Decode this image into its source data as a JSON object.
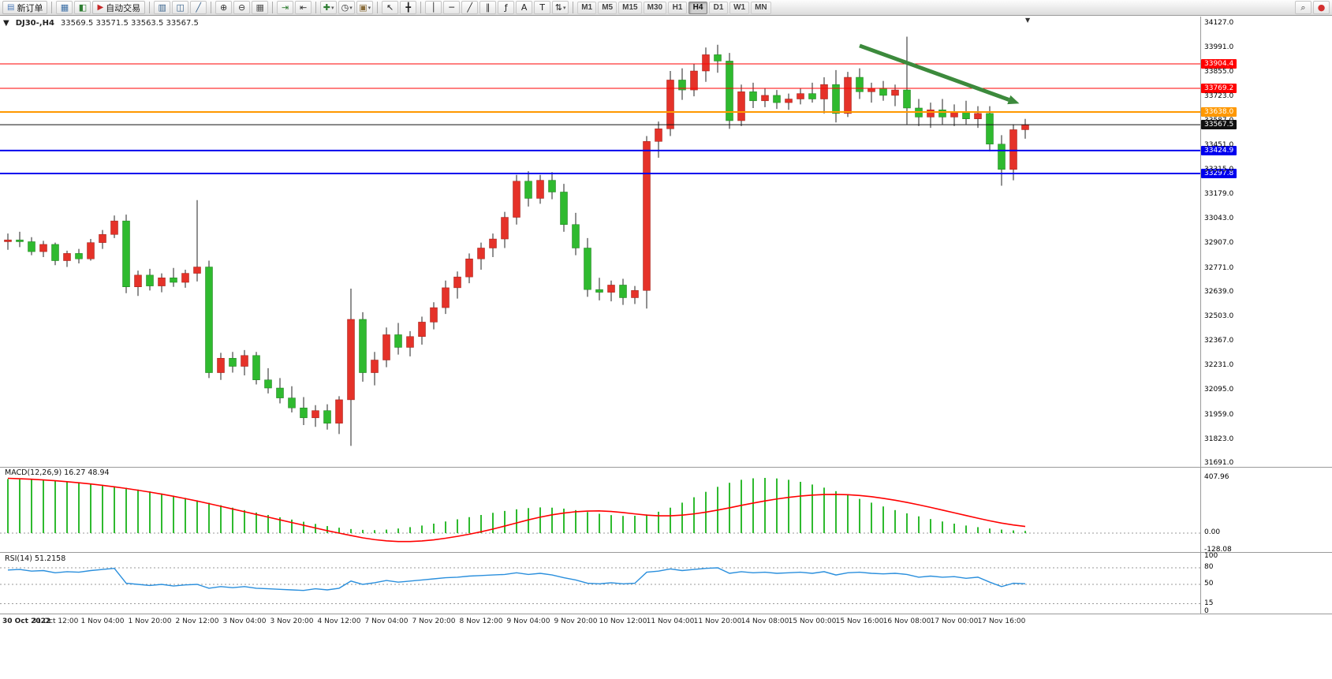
{
  "toolbar": {
    "dropdown_glyph": "▾",
    "items": [
      {
        "type": "button",
        "name": "new-order-button",
        "glyph": "▤",
        "glyph_color": "#4a79b8",
        "label": "新订单"
      },
      {
        "type": "sep"
      },
      {
        "type": "icon",
        "name": "charts-window-icon",
        "glyph": "▦",
        "color": "#3a6ea5"
      },
      {
        "type": "icon",
        "name": "market-watch-icon",
        "glyph": "◧",
        "color": "#2e7d32"
      },
      {
        "type": "button",
        "name": "auto-trading-button",
        "glyph": "▶",
        "glyph_color": "#c62828",
        "label": "自动交易"
      },
      {
        "type": "sep"
      },
      {
        "type": "icon",
        "name": "bar-chart-icon",
        "glyph": "▥",
        "color": "#35608a"
      },
      {
        "type": "icon",
        "name": "candlestick-chart-icon",
        "glyph": "◫",
        "color": "#35608a"
      },
      {
        "type": "icon",
        "name": "line-chart-icon",
        "glyph": "╱",
        "color": "#35608a"
      },
      {
        "type": "sep"
      },
      {
        "type": "icon",
        "name": "zoom-in-icon",
        "glyph": "⊕",
        "color": "#333333"
      },
      {
        "type": "icon",
        "name": "zoom-out-icon",
        "glyph": "⊖",
        "color": "#333333"
      },
      {
        "type": "icon",
        "name": "tile-windows-icon",
        "glyph": "▦",
        "color": "#555555"
      },
      {
        "type": "sep"
      },
      {
        "type": "icon",
        "name": "auto-scroll-icon",
        "glyph": "⇥",
        "color": "#2e7d32"
      },
      {
        "type": "icon",
        "name": "chart-shift-icon",
        "glyph": "⇤",
        "color": "#333333"
      },
      {
        "type": "sep"
      },
      {
        "type": "icon",
        "name": "indicators-icon",
        "glyph": "✚",
        "color": "#2e7d32",
        "dropdown": true
      },
      {
        "type": "icon",
        "name": "periods-icon",
        "glyph": "◷",
        "color": "#333333",
        "dropdown": true
      },
      {
        "type": "icon",
        "name": "templates-icon",
        "glyph": "▣",
        "color": "#8a6d3b",
        "dropdown": true
      },
      {
        "type": "sep"
      },
      {
        "type": "icon",
        "name": "cursor-icon",
        "glyph": "↖",
        "color": "#222222"
      },
      {
        "type": "icon",
        "name": "crosshair-icon",
        "glyph": "╋",
        "color": "#222222"
      },
      {
        "type": "sep"
      },
      {
        "type": "icon",
        "name": "vertical-line-icon",
        "glyph": "│",
        "color": "#222222"
      },
      {
        "type": "icon",
        "name": "horizontal-line-icon",
        "glyph": "─",
        "color": "#222222"
      },
      {
        "type": "icon",
        "name": "trendline-icon",
        "glyph": "╱",
        "color": "#222222"
      },
      {
        "type": "icon",
        "name": "equidistant-channel-icon",
        "glyph": "∥",
        "color": "#222222"
      },
      {
        "type": "icon",
        "name": "fibonacci-icon",
        "glyph": "ƒ",
        "color": "#222222"
      },
      {
        "type": "icon",
        "name": "text-icon",
        "glyph": "A",
        "color": "#222222"
      },
      {
        "type": "icon",
        "name": "text-label-icon",
        "glyph": "T",
        "color": "#222222"
      },
      {
        "type": "icon",
        "name": "arrows-icon",
        "glyph": "⇅",
        "color": "#222222",
        "dropdown": true
      },
      {
        "type": "sep"
      },
      {
        "type": "tf",
        "name": "timeframe-m1",
        "label": "M1"
      },
      {
        "type": "tf",
        "name": "timeframe-m5",
        "label": "M5"
      },
      {
        "type": "tf",
        "name": "timeframe-m15",
        "label": "M15"
      },
      {
        "type": "tf",
        "name": "timeframe-m30",
        "label": "M30"
      },
      {
        "type": "tf",
        "name": "timeframe-h1",
        "label": "H1"
      },
      {
        "type": "tf",
        "name": "timeframe-h4",
        "label": "H4",
        "active": true
      },
      {
        "type": "tf",
        "name": "timeframe-d1",
        "label": "D1"
      },
      {
        "type": "tf",
        "name": "timeframe-w1",
        "label": "W1"
      },
      {
        "type": "tf",
        "name": "timeframe-mn",
        "label": "MN"
      }
    ],
    "right_items": [
      {
        "type": "icon",
        "name": "search-icon",
        "glyph": "⌕",
        "color": "#333333"
      },
      {
        "type": "icon",
        "name": "account-icon",
        "glyph": "●",
        "color": "#d32f2f"
      }
    ]
  },
  "chart_header": {
    "collapse_glyph": "▼",
    "symbol_period": "DJ30-,H4",
    "ohlc": "33569.5 33571.5 33563.5 33567.5",
    "shift_marker_glyph": "▼"
  },
  "indicators": {
    "macd": {
      "label": "MACD(12,26,9) 16.27 48.94",
      "params": [
        12,
        26,
        9
      ],
      "current_main": 16.27,
      "current_signal": 48.94,
      "axis": [
        407.96,
        0,
        -128.08
      ]
    },
    "rsi": {
      "label": "RSI(14) 51.2158",
      "period": 14,
      "current": 51.2158,
      "axis": [
        100,
        80,
        50,
        15,
        0
      ],
      "levels": [
        80,
        50,
        15
      ]
    }
  },
  "chart_data": {
    "type": "candlestick",
    "symbol": "DJ30-",
    "timeframe": "H4",
    "title": "DJ30-,H4",
    "ylim": [
      31691,
      34127
    ],
    "grid": false,
    "y_ticks": [
      34127,
      33991,
      33855,
      33723,
      33587,
      33451,
      33315,
      33179,
      33043,
      32907,
      32771,
      32639,
      32503,
      32367,
      32231,
      32095,
      31959,
      31823,
      31691
    ],
    "x_labels": [
      "30 Oct 2022",
      "31 Oct 12:00",
      "1 Nov 04:00",
      "1 Nov 20:00",
      "2 Nov 12:00",
      "3 Nov 04:00",
      "3 Nov 20:00",
      "4 Nov 12:00",
      "7 Nov 04:00",
      "7 Nov 20:00",
      "8 Nov 12:00",
      "9 Nov 04:00",
      "9 Nov 20:00",
      "10 Nov 12:00",
      "11 Nov 04:00",
      "11 Nov 20:00",
      "14 Nov 08:00",
      "15 Nov 00:00",
      "15 Nov 16:00",
      "16 Nov 08:00",
      "17 Nov 00:00",
      "17 Nov 16:00"
    ],
    "bars_per_label": 4,
    "candles": [
      [
        32920,
        32965,
        32875,
        32930
      ],
      [
        32930,
        32975,
        32890,
        32920
      ],
      [
        32920,
        32945,
        32845,
        32865
      ],
      [
        32865,
        32925,
        32835,
        32905
      ],
      [
        32905,
        32915,
        32790,
        32815
      ],
      [
        32815,
        32870,
        32780,
        32855
      ],
      [
        32855,
        32880,
        32800,
        32825
      ],
      [
        32825,
        32935,
        32815,
        32915
      ],
      [
        32915,
        32985,
        32880,
        32960
      ],
      [
        32960,
        33065,
        32940,
        33035
      ],
      [
        33035,
        33070,
        32635,
        32670
      ],
      [
        32670,
        32760,
        32620,
        32735
      ],
      [
        32735,
        32770,
        32650,
        32675
      ],
      [
        32675,
        32745,
        32640,
        32720
      ],
      [
        32720,
        32775,
        32670,
        32695
      ],
      [
        32695,
        32765,
        32665,
        32745
      ],
      [
        32745,
        33150,
        32700,
        32780
      ],
      [
        32780,
        32815,
        32165,
        32195
      ],
      [
        32195,
        32305,
        32155,
        32275
      ],
      [
        32275,
        32310,
        32195,
        32230
      ],
      [
        32230,
        32320,
        32180,
        32290
      ],
      [
        32290,
        32310,
        32130,
        32155
      ],
      [
        32155,
        32220,
        32080,
        32110
      ],
      [
        32110,
        32165,
        32025,
        32055
      ],
      [
        32055,
        32120,
        31975,
        32000
      ],
      [
        32000,
        32060,
        31905,
        31945
      ],
      [
        31945,
        32015,
        31895,
        31985
      ],
      [
        31985,
        32020,
        31880,
        31915
      ],
      [
        31915,
        32065,
        31855,
        32045
      ],
      [
        32045,
        32660,
        31790,
        32490
      ],
      [
        32490,
        32530,
        32145,
        32195
      ],
      [
        32195,
        32310,
        32125,
        32265
      ],
      [
        32265,
        32445,
        32225,
        32405
      ],
      [
        32405,
        32470,
        32295,
        32335
      ],
      [
        32335,
        32425,
        32285,
        32395
      ],
      [
        32395,
        32505,
        32350,
        32475
      ],
      [
        32475,
        32585,
        32435,
        32555
      ],
      [
        32555,
        32705,
        32520,
        32665
      ],
      [
        32665,
        32755,
        32605,
        32725
      ],
      [
        32725,
        32855,
        32690,
        32825
      ],
      [
        32825,
        32915,
        32765,
        32885
      ],
      [
        32885,
        32965,
        32835,
        32935
      ],
      [
        32935,
        33085,
        32885,
        33055
      ],
      [
        33055,
        33290,
        33015,
        33255
      ],
      [
        33255,
        33310,
        33115,
        33160
      ],
      [
        33160,
        33290,
        33130,
        33260
      ],
      [
        33260,
        33305,
        33155,
        33195
      ],
      [
        33195,
        33240,
        32975,
        33015
      ],
      [
        33015,
        33080,
        32845,
        32885
      ],
      [
        32885,
        32940,
        32615,
        32655
      ],
      [
        32655,
        32720,
        32595,
        32640
      ],
      [
        32640,
        32705,
        32590,
        32680
      ],
      [
        32680,
        32715,
        32570,
        32610
      ],
      [
        32610,
        32675,
        32575,
        32650
      ],
      [
        32650,
        33505,
        32550,
        33475
      ],
      [
        33475,
        33585,
        33385,
        33545
      ],
      [
        33545,
        33865,
        33505,
        33815
      ],
      [
        33815,
        33880,
        33705,
        33760
      ],
      [
        33760,
        33905,
        33725,
        33865
      ],
      [
        33865,
        33995,
        33805,
        33955
      ],
      [
        33955,
        34010,
        33855,
        33920
      ],
      [
        33920,
        33965,
        33545,
        33590
      ],
      [
        33590,
        33790,
        33560,
        33750
      ],
      [
        33750,
        33800,
        33660,
        33700
      ],
      [
        33700,
        33770,
        33665,
        33730
      ],
      [
        33730,
        33760,
        33655,
        33690
      ],
      [
        33690,
        33740,
        33650,
        33710
      ],
      [
        33710,
        33770,
        33680,
        33740
      ],
      [
        33740,
        33800,
        33690,
        33710
      ],
      [
        33710,
        33830,
        33630,
        33790
      ],
      [
        33790,
        33870,
        33580,
        33630
      ],
      [
        33630,
        33860,
        33610,
        33830
      ],
      [
        33830,
        33880,
        33710,
        33750
      ],
      [
        33750,
        33800,
        33690,
        33770
      ],
      [
        33770,
        33810,
        33700,
        33730
      ],
      [
        33730,
        33790,
        33670,
        33760
      ],
      [
        33760,
        34055,
        33570,
        33660
      ],
      [
        33660,
        33710,
        33560,
        33610
      ],
      [
        33610,
        33690,
        33550,
        33650
      ],
      [
        33650,
        33710,
        33570,
        33610
      ],
      [
        33610,
        33680,
        33560,
        33640
      ],
      [
        33640,
        33700,
        33570,
        33600
      ],
      [
        33600,
        33670,
        33550,
        33630
      ],
      [
        33630,
        33670,
        33420,
        33460
      ],
      [
        33460,
        33510,
        33230,
        33320
      ],
      [
        33320,
        33570,
        33260,
        33540
      ],
      [
        33540,
        33600,
        33490,
        33567.5
      ]
    ],
    "levels": [
      {
        "price": 33904.4,
        "color": "#ff0000",
        "width": 1
      },
      {
        "price": 33769.2,
        "color": "#ff0000",
        "width": 1
      },
      {
        "price": 33638.0,
        "color": "#ff9800",
        "width": 2
      },
      {
        "price": 33424.9,
        "color": "#0000ee",
        "width": 2
      },
      {
        "price": 33297.8,
        "color": "#0000ee",
        "width": 2
      }
    ],
    "current_price": {
      "price": 33567.5,
      "color": "#111111",
      "width": 1
    },
    "macd": {
      "range": [
        -128.08,
        407.96
      ],
      "histogram": [
        400,
        398,
        395,
        391,
        386,
        380,
        373,
        365,
        356,
        346,
        335,
        322,
        308,
        293,
        277,
        260,
        242,
        224,
        206,
        188,
        170,
        152,
        134,
        117,
        100,
        84,
        68,
        52,
        40,
        30,
        24,
        22,
        26,
        34,
        44,
        56,
        70,
        86,
        102,
        118,
        134,
        150,
        164,
        176,
        185,
        190,
        188,
        181,
        170,
        156,
        143,
        133,
        127,
        128,
        138,
        158,
        188,
        225,
        265,
        305,
        342,
        372,
        394,
        405,
        408,
        404,
        394,
        379,
        359,
        336,
        310,
        282,
        253,
        225,
        197,
        170,
        146,
        124,
        104,
        86,
        70,
        56,
        44,
        34,
        26,
        20,
        16.27
      ],
      "signal": [
        405,
        402,
        398,
        393,
        387,
        380,
        372,
        363,
        353,
        342,
        330,
        317,
        303,
        288,
        272,
        255,
        237,
        218,
        198,
        178,
        158,
        138,
        118,
        98,
        78,
        58,
        38,
        18,
        0,
        -18,
        -35,
        -48,
        -57,
        -62,
        -62,
        -58,
        -50,
        -38,
        -24,
        -8,
        10,
        30,
        52,
        75,
        98,
        118,
        135,
        148,
        158,
        163,
        164,
        160,
        152,
        142,
        133,
        128,
        128,
        133,
        142,
        155,
        170,
        187,
        205,
        222,
        238,
        252,
        264,
        274,
        281,
        285,
        286,
        284,
        278,
        269,
        257,
        243,
        227,
        209,
        190,
        170,
        150,
        130,
        110,
        91,
        74,
        60,
        48.94
      ]
    },
    "rsi": {
      "range": [
        0,
        100
      ],
      "values": [
        76,
        77,
        74,
        75,
        71,
        73,
        72,
        75,
        77,
        79,
        52,
        50,
        48,
        50,
        47,
        49,
        50,
        43,
        46,
        44,
        46,
        43,
        42,
        41,
        40,
        39,
        42,
        40,
        43,
        56,
        50,
        53,
        57,
        54,
        56,
        58,
        60,
        62,
        63,
        65,
        66,
        67,
        68,
        71,
        68,
        70,
        67,
        62,
        58,
        52,
        51,
        53,
        51,
        52,
        72,
        74,
        78,
        75,
        77,
        79,
        80,
        70,
        73,
        71,
        72,
        70,
        71,
        72,
        70,
        73,
        67,
        71,
        72,
        70,
        69,
        70,
        68,
        63,
        65,
        63,
        64,
        61,
        63,
        54,
        46,
        52,
        51.22
      ]
    },
    "trend_arrow": {
      "from_bar": 72,
      "from_price": 34005,
      "to_bar": 85.5,
      "to_price": 33685,
      "color": "#3c8a3c"
    },
    "colors": {
      "bull": "#e53229",
      "bear": "#2fba2f",
      "wick": "#222222",
      "macd_hist": "#2fba2f",
      "macd_signal": "#ff0000",
      "rsi_line": "#2a8fdd",
      "separator": "#9a9a9a",
      "grid_dash": "#999999"
    }
  }
}
